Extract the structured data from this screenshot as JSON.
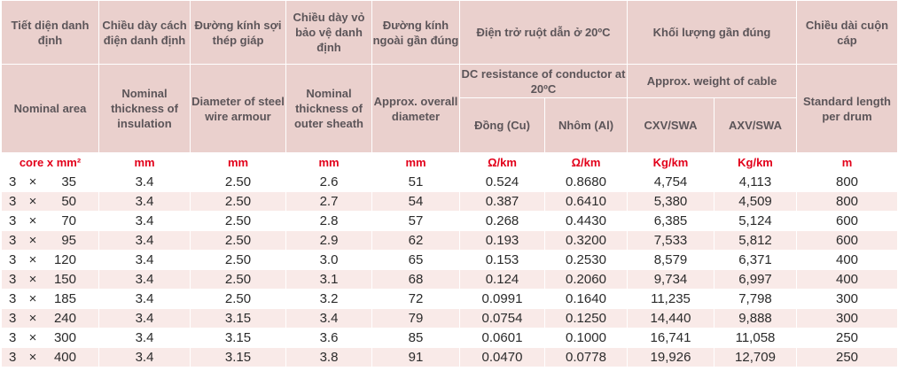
{
  "header": {
    "col1_vi": "Tiết diện danh định",
    "col1_en": "Nominal area",
    "col2_vi": "Chiều dày cách điện danh định",
    "col2_en": "Nominal thickness of insulation",
    "col3_vi": "Đường kính sợi thép giáp",
    "col3_en": "Diameter of steel wire armour",
    "col4_vi": "Chiều dày vỏ bảo vệ danh định",
    "col4_en": "Nominal thickness of outer sheath",
    "col5_vi": "Đường kính ngoài gần đúng",
    "col5_en": "Approx. overall diameter",
    "resist_vi": "Điện trở ruột dẫn ở 20ºC",
    "resist_en": "DC resistance of conductor at 20ºC",
    "resist_cu": "Đồng (Cu)",
    "resist_al": "Nhôm (Al)",
    "weight_vi": "Khối lượng gần đúng",
    "weight_en": "Approx. weight of cable",
    "weight_cxv": "CXV/SWA",
    "weight_axv": "AXV/SWA",
    "length_vi": "Chiều dài cuộn cáp",
    "length_en": "Standard length per drum"
  },
  "units": [
    "core x mm²",
    "mm",
    "mm",
    "mm",
    "mm",
    "Ω/km",
    "Ω/km",
    "Kg/km",
    "Kg/km",
    "m"
  ],
  "rows": [
    {
      "core": "3",
      "x": "×",
      "area": "35",
      "ins": "3.4",
      "wire": "2.50",
      "sheath": "2.6",
      "dia": "51",
      "cu": "0.524",
      "al": "0.8680",
      "cxv": "4,754",
      "axv": "4,113",
      "len": "800"
    },
    {
      "core": "3",
      "x": "×",
      "area": "50",
      "ins": "3.4",
      "wire": "2.50",
      "sheath": "2.7",
      "dia": "54",
      "cu": "0.387",
      "al": "0.6410",
      "cxv": "5,380",
      "axv": "4,509",
      "len": "800"
    },
    {
      "core": "3",
      "x": "×",
      "area": "70",
      "ins": "3.4",
      "wire": "2.50",
      "sheath": "2.8",
      "dia": "57",
      "cu": "0.268",
      "al": "0.4430",
      "cxv": "6,385",
      "axv": "5,124",
      "len": "600"
    },
    {
      "core": "3",
      "x": "×",
      "area": "95",
      "ins": "3.4",
      "wire": "2.50",
      "sheath": "2.9",
      "dia": "62",
      "cu": "0.193",
      "al": "0.3200",
      "cxv": "7,533",
      "axv": "5,812",
      "len": "600"
    },
    {
      "core": "3",
      "x": "×",
      "area": "120",
      "ins": "3.4",
      "wire": "2.50",
      "sheath": "3.0",
      "dia": "65",
      "cu": "0.153",
      "al": "0.2530",
      "cxv": "8,579",
      "axv": "6,371",
      "len": "400"
    },
    {
      "core": "3",
      "x": "×",
      "area": "150",
      "ins": "3.4",
      "wire": "2.50",
      "sheath": "3.1",
      "dia": "68",
      "cu": "0.124",
      "al": "0.2060",
      "cxv": "9,734",
      "axv": "6,997",
      "len": "400"
    },
    {
      "core": "3",
      "x": "×",
      "area": "185",
      "ins": "3.4",
      "wire": "2.50",
      "sheath": "3.2",
      "dia": "72",
      "cu": "0.0991",
      "al": "0.1640",
      "cxv": "11,235",
      "axv": "7,798",
      "len": "300"
    },
    {
      "core": "3",
      "x": "×",
      "area": "240",
      "ins": "3.4",
      "wire": "3.15",
      "sheath": "3.4",
      "dia": "79",
      "cu": "0.0754",
      "al": "0.1250",
      "cxv": "14,440",
      "axv": "9,888",
      "len": "300"
    },
    {
      "core": "3",
      "x": "×",
      "area": "300",
      "ins": "3.4",
      "wire": "3.15",
      "sheath": "3.6",
      "dia": "85",
      "cu": "0.0601",
      "al": "0.1000",
      "cxv": "16,741",
      "axv": "11,058",
      "len": "250"
    },
    {
      "core": "3",
      "x": "×",
      "area": "400",
      "ins": "3.4",
      "wire": "3.15",
      "sheath": "3.8",
      "dia": "91",
      "cu": "0.0470",
      "al": "0.0778",
      "cxv": "19,926",
      "axv": "12,709",
      "len": "250"
    }
  ]
}
